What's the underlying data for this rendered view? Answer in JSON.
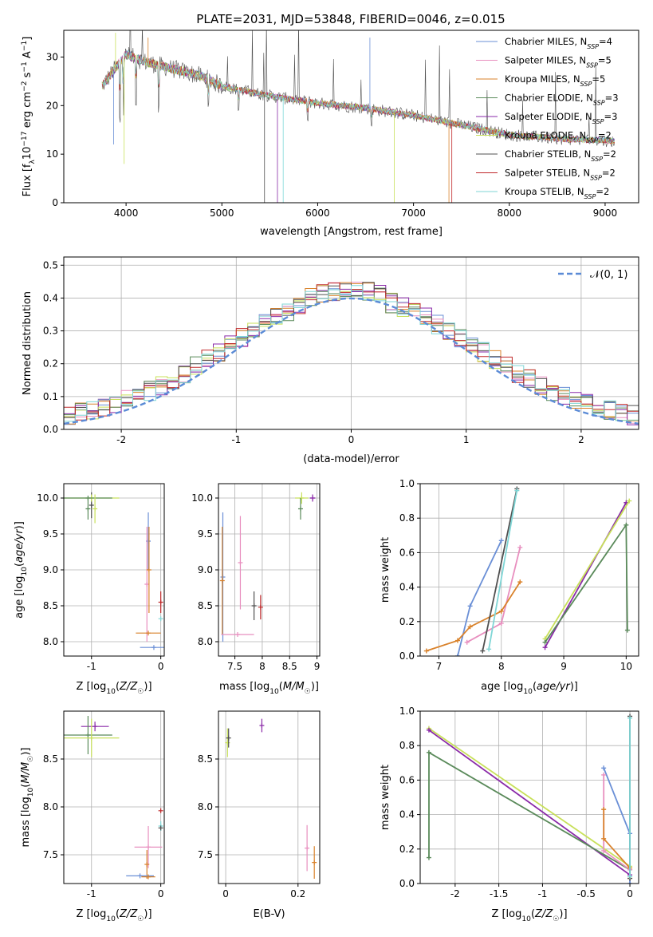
{
  "figure_title": "PLATE=2031, MJD=53848, FIBERID=0046, z=0.015",
  "colors": [
    "#6a8fd6",
    "#e88fbf",
    "#d9822b",
    "#5a8a5a",
    "#8a2aa8",
    "#c8e05a",
    "#505050",
    "#c0282a",
    "#7fd6d6"
  ],
  "chart_data": [
    {
      "id": "spectrum",
      "type": "line",
      "xlabel": "wavelength [Angstrom, rest frame]",
      "ylabel": "Flux [f_λ10^-17 erg cm^-2 s^-1 A^-1]",
      "xlim": [
        3350,
        9350
      ],
      "ylim": [
        0,
        35.5
      ],
      "xticks": [
        4000,
        5000,
        6000,
        7000,
        8000,
        9000
      ],
      "yticks": [
        0,
        10,
        20,
        30
      ],
      "grid": false,
      "legend_position": "top-right",
      "legend": [
        {
          "name": "Chabrier MILES",
          "nssp": "4"
        },
        {
          "name": "Salpeter MILES",
          "nssp": "5"
        },
        {
          "name": "Kroupa MILES",
          "nssp": "5"
        },
        {
          "name": "Chabrier ELODIE",
          "nssp": "3"
        },
        {
          "name": "Salpeter ELODIE",
          "nssp": "3"
        },
        {
          "name": "Kroupa ELODIE",
          "nssp": "2"
        },
        {
          "name": "Chabrier STELIB",
          "nssp": "2"
        },
        {
          "name": "Salpeter STELIB",
          "nssp": "2"
        },
        {
          "name": "Kroupa STELIB",
          "nssp": "2"
        }
      ],
      "continuum": [
        [
          3750,
          24
        ],
        [
          3900,
          28
        ],
        [
          4000,
          30.5
        ],
        [
          4200,
          29
        ],
        [
          4500,
          27.5
        ],
        [
          4800,
          26
        ],
        [
          5000,
          24
        ],
        [
          5500,
          22
        ],
        [
          6000,
          20.5
        ],
        [
          6500,
          19.5
        ],
        [
          7000,
          18
        ],
        [
          7500,
          16
        ],
        [
          8000,
          14
        ],
        [
          8500,
          13.2
        ],
        [
          9000,
          12.8
        ],
        [
          9100,
          12.7
        ]
      ]
    },
    {
      "id": "residuals",
      "type": "area",
      "xlabel": "(data-model)/error",
      "ylabel": "Normed distribution",
      "xlim": [
        -2.5,
        2.5
      ],
      "ylim": [
        0,
        0.525
      ],
      "xticks": [
        -2,
        -1,
        0,
        1,
        2
      ],
      "yticks": [
        0.0,
        0.1,
        0.2,
        0.3,
        0.4,
        0.5
      ],
      "grid": true,
      "legend_position": "top-right",
      "gauss_label": "𝒩(0, 1)"
    },
    {
      "id": "age_vs_Z",
      "type": "scatter",
      "xlabel": "Z [log10(Z/Z☉)]",
      "ylabel": "age  [log10(age/yr)]",
      "xlim": [
        -1.4,
        0.05
      ],
      "ylim": [
        7.8,
        10.2
      ],
      "xticks": [
        -1,
        0
      ],
      "yticks": [
        8.0,
        8.5,
        9.0,
        9.5,
        10.0
      ],
      "grid": true,
      "points": [
        {
          "c": 0,
          "x": -0.1,
          "y": 7.92,
          "xerr": 0.2,
          "yerr": 0
        },
        {
          "c": 0,
          "x": -0.18,
          "y": 9.4,
          "xerr": 0,
          "yerr": 0.4
        },
        {
          "c": 1,
          "x": -0.2,
          "y": 8.8,
          "xerr": 0,
          "yerr": 0.8
        },
        {
          "c": 2,
          "x": -0.18,
          "y": 8.12,
          "xerr": 0.18,
          "yerr": 0
        },
        {
          "c": 2,
          "x": -0.17,
          "y": 9.0,
          "xerr": 0,
          "yerr": 0.6
        },
        {
          "c": 3,
          "x": -1.05,
          "y": 9.85,
          "xerr": 0,
          "yerr": 0.15
        },
        {
          "c": 6,
          "x": -1.0,
          "y": 9.9,
          "xerr": 0,
          "yerr": 0.18
        },
        {
          "c": 5,
          "x": -1.0,
          "y": 10.0,
          "xerr": 0.4,
          "yerr": 0.05
        },
        {
          "c": 3,
          "x": -1.05,
          "y": 10.0,
          "xerr": 0.35,
          "yerr": 0
        },
        {
          "c": 5,
          "x": -0.95,
          "y": 9.85,
          "xerr": 0,
          "yerr": 0.2
        },
        {
          "c": 7,
          "x": 0.0,
          "y": 8.55,
          "xerr": 0,
          "yerr": 0.15
        },
        {
          "c": 8,
          "x": 0.0,
          "y": 8.32,
          "xerr": 0,
          "yerr": 0
        }
      ]
    },
    {
      "id": "age_vs_mass",
      "type": "scatter",
      "xlabel": "mass [log10(M/M☉)]",
      "ylabel": "",
      "xlim": [
        7.2,
        9.05
      ],
      "ylim": [
        7.8,
        10.2
      ],
      "xticks": [
        7.5,
        8.0,
        8.5,
        9.0
      ],
      "yticks": [
        8.0,
        8.5,
        9.0,
        9.5,
        10.0
      ],
      "grid": true,
      "points": [
        {
          "c": 0,
          "x": 7.28,
          "y": 8.9,
          "xerr": 0,
          "yerr": 0.9
        },
        {
          "c": 2,
          "x": 7.27,
          "y": 8.85,
          "xerr": 0,
          "yerr": 0.75
        },
        {
          "c": 1,
          "x": 7.55,
          "y": 8.1,
          "xerr": 0.3,
          "yerr": 0
        },
        {
          "c": 1,
          "x": 7.6,
          "y": 9.1,
          "xerr": 0,
          "yerr": 0.65
        },
        {
          "c": 6,
          "x": 7.85,
          "y": 8.5,
          "xerr": 0,
          "yerr": 0.2
        },
        {
          "c": 7,
          "x": 7.97,
          "y": 8.48,
          "xerr": 0,
          "yerr": 0.17
        },
        {
          "c": 5,
          "x": 8.72,
          "y": 10.0,
          "xerr": 0.12,
          "yerr": 0.08
        },
        {
          "c": 3,
          "x": 8.7,
          "y": 9.85,
          "xerr": 0,
          "yerr": 0.15
        },
        {
          "c": 4,
          "x": 8.92,
          "y": 10.0,
          "xerr": 0.05,
          "yerr": 0.05
        }
      ]
    },
    {
      "id": "weight_vs_age",
      "type": "line",
      "xlabel": "age  [log10(age/yr)]",
      "ylabel": "mass weight",
      "xlim": [
        6.7,
        10.2
      ],
      "ylim": [
        0,
        1
      ],
      "xticks": [
        7,
        8,
        9,
        10
      ],
      "yticks": [
        0.0,
        0.2,
        0.4,
        0.6,
        0.8,
        1.0
      ],
      "grid": true,
      "series": [
        {
          "c": 0,
          "x": [
            7.3,
            7.5,
            8.0
          ],
          "y": [
            0.0,
            0.29,
            0.67
          ]
        },
        {
          "c": 1,
          "x": [
            7.45,
            8.0,
            8.3
          ],
          "y": [
            0.08,
            0.19,
            0.63
          ]
        },
        {
          "c": 2,
          "x": [
            6.8,
            7.3,
            7.5,
            8.0,
            8.3
          ],
          "y": [
            0.03,
            0.09,
            0.17,
            0.26,
            0.43
          ]
        },
        {
          "c": 6,
          "x": [
            7.7,
            8.25
          ],
          "y": [
            0.03,
            0.97
          ]
        },
        {
          "c": 8,
          "x": [
            7.8,
            8.25
          ],
          "y": [
            0.04,
            0.96
          ]
        },
        {
          "c": 4,
          "x": [
            8.7,
            10.0
          ],
          "y": [
            0.05,
            0.89
          ]
        },
        {
          "c": 5,
          "x": [
            8.7,
            10.05
          ],
          "y": [
            0.1,
            0.9
          ]
        },
        {
          "c": 3,
          "x": [
            8.7,
            10.0,
            10.02
          ],
          "y": [
            0.08,
            0.76,
            0.15
          ]
        }
      ]
    },
    {
      "id": "mass_vs_Z",
      "type": "scatter",
      "xlabel": "Z [log10(Z/Z☉)]",
      "ylabel": "mass [log10(M/M☉)]",
      "xlim": [
        -1.4,
        0.05
      ],
      "ylim": [
        7.2,
        9.0
      ],
      "xticks": [
        -1,
        0
      ],
      "yticks": [
        7.5,
        8.0,
        8.5
      ],
      "grid": true,
      "points": [
        {
          "c": 4,
          "x": -0.95,
          "y": 8.84,
          "xerr": 0.2,
          "yerr": 0.05
        },
        {
          "c": 3,
          "x": -1.05,
          "y": 8.75,
          "xerr": 0.35,
          "yerr": 0.2
        },
        {
          "c": 5,
          "x": -1.0,
          "y": 8.72,
          "xerr": 0.4,
          "yerr": 0.2
        },
        {
          "c": 1,
          "x": -0.18,
          "y": 7.58,
          "xerr": 0.2,
          "yerr": 0.22
        },
        {
          "c": 2,
          "x": -0.2,
          "y": 7.4,
          "xerr": 0,
          "yerr": 0.15
        },
        {
          "c": 0,
          "x": -0.3,
          "y": 7.28,
          "xerr": 0.2,
          "yerr": 0
        },
        {
          "c": 2,
          "x": -0.18,
          "y": 7.27,
          "xerr": 0.1,
          "yerr": 0
        },
        {
          "c": 7,
          "x": 0.0,
          "y": 7.96,
          "xerr": 0,
          "yerr": 0
        },
        {
          "c": 8,
          "x": 0.0,
          "y": 7.8,
          "xerr": 0,
          "yerr": 0.05
        },
        {
          "c": 6,
          "x": 0.0,
          "y": 7.78,
          "xerr": 0,
          "yerr": 0
        }
      ]
    },
    {
      "id": "mass_vs_ebv",
      "type": "scatter",
      "xlabel": "E(B-V)",
      "ylabel": "",
      "xlim": [
        -0.02,
        0.26
      ],
      "ylim": [
        7.2,
        9.0
      ],
      "xticks": [
        0.0,
        0.2
      ],
      "yticks": [
        7.5,
        8.0,
        8.5
      ],
      "grid": true,
      "points": [
        {
          "c": 5,
          "x": 0.005,
          "y": 8.67,
          "xerr": 0,
          "yerr": 0.15
        },
        {
          "c": 6,
          "x": 0.008,
          "y": 8.72,
          "xerr": 0,
          "yerr": 0.1
        },
        {
          "c": 4,
          "x": 0.1,
          "y": 8.85,
          "xerr": 0,
          "yerr": 0.07
        },
        {
          "c": 1,
          "x": 0.225,
          "y": 7.57,
          "xerr": 0,
          "yerr": 0.24
        },
        {
          "c": 2,
          "x": 0.245,
          "y": 7.42,
          "xerr": 0,
          "yerr": 0.17
        }
      ]
    },
    {
      "id": "weight_vs_Z",
      "type": "line",
      "xlabel": "Z [log10(Z/Z☉)]",
      "ylabel": "mass weight",
      "xlim": [
        -2.4,
        0.1
      ],
      "ylim": [
        0,
        1
      ],
      "xticks": [
        -2.0,
        -1.5,
        -1.0,
        -0.5,
        0.0
      ],
      "yticks": [
        0.0,
        0.2,
        0.4,
        0.6,
        0.8,
        1.0
      ],
      "grid": true,
      "series": [
        {
          "c": 5,
          "x": [
            -2.3,
            0.0
          ],
          "y": [
            0.9,
            0.1
          ]
        },
        {
          "c": 4,
          "x": [
            -2.3,
            0.0
          ],
          "y": [
            0.89,
            0.05
          ]
        },
        {
          "c": 3,
          "x": [
            -2.3,
            -2.3,
            0.0
          ],
          "y": [
            0.15,
            0.76,
            0.08
          ]
        },
        {
          "c": 0,
          "x": [
            -0.3,
            0.0,
            0.0
          ],
          "y": [
            0.67,
            0.29,
            0.0
          ]
        },
        {
          "c": 1,
          "x": [
            -0.3,
            -0.3,
            0.0
          ],
          "y": [
            0.63,
            0.19,
            0.08
          ]
        },
        {
          "c": 2,
          "x": [
            -0.3,
            -0.3,
            0.0,
            0.0
          ],
          "y": [
            0.43,
            0.26,
            0.09,
            0.03
          ]
        },
        {
          "c": 6,
          "x": [
            0.0,
            0.0
          ],
          "y": [
            0.97,
            0.03
          ]
        },
        {
          "c": 8,
          "x": [
            0.0,
            0.0
          ],
          "y": [
            0.96,
            0.04
          ]
        }
      ]
    }
  ]
}
